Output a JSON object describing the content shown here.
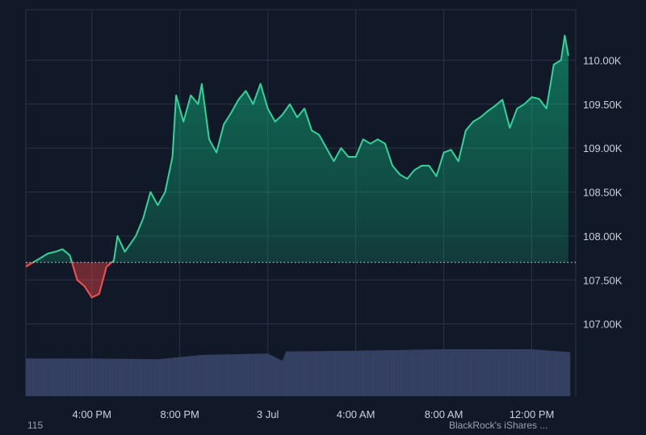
{
  "theme": {
    "background": "#111827",
    "grid": "#2a3344",
    "text": "#c9d1dc",
    "up_line": "#34d399",
    "down_line": "#f05252",
    "volume": "#3a4569"
  },
  "footer": {
    "left_text": "115",
    "right_text": "BlackRock's iShares ..."
  },
  "chart_data": {
    "type": "area",
    "title": "",
    "xlabel": "",
    "ylabel": "",
    "baseline": 107700,
    "ylim": [
      106500,
      110500
    ],
    "yticks": [
      107000,
      107500,
      108000,
      108500,
      109000,
      109500,
      110000
    ],
    "ytick_labels": [
      "107.00K",
      "107.50K",
      "108.00K",
      "108.50K",
      "109.00K",
      "109.50K",
      "110.00K"
    ],
    "x_range": [
      "2025-07-02 13:00",
      "2025-07-03 14:00"
    ],
    "xticks": [
      "2025-07-02 16:00",
      "2025-07-02 20:00",
      "2025-07-03 00:00",
      "2025-07-03 04:00",
      "2025-07-03 08:00",
      "2025-07-03 12:00"
    ],
    "xtick_labels": [
      "4:00 PM",
      "8:00 PM",
      "3 Jul",
      "4:00 AM",
      "8:00 AM",
      "12:00 PM"
    ],
    "grid": true,
    "series": [
      {
        "values": [
          [
            "2025-07-02 13:00",
            107650
          ],
          [
            "2025-07-02 13:20",
            107700
          ],
          [
            "2025-07-02 13:40",
            107750
          ],
          [
            "2025-07-02 14:00",
            107800
          ],
          [
            "2025-07-02 14:20",
            107820
          ],
          [
            "2025-07-02 14:40",
            107850
          ],
          [
            "2025-07-02 15:00",
            107780
          ],
          [
            "2025-07-02 15:20",
            107500
          ],
          [
            "2025-07-02 15:40",
            107430
          ],
          [
            "2025-07-02 16:00",
            107300
          ],
          [
            "2025-07-02 16:20",
            107340
          ],
          [
            "2025-07-02 16:40",
            107650
          ],
          [
            "2025-07-02 17:00",
            107720
          ],
          [
            "2025-07-02 17:10",
            108000
          ],
          [
            "2025-07-02 17:30",
            107820
          ],
          [
            "2025-07-02 18:00",
            108000
          ],
          [
            "2025-07-02 18:20",
            108200
          ],
          [
            "2025-07-02 18:40",
            108500
          ],
          [
            "2025-07-02 19:00",
            108350
          ],
          [
            "2025-07-02 19:20",
            108500
          ],
          [
            "2025-07-02 19:40",
            108900
          ],
          [
            "2025-07-02 19:50",
            109600
          ],
          [
            "2025-07-02 20:10",
            109300
          ],
          [
            "2025-07-02 20:30",
            109600
          ],
          [
            "2025-07-02 20:50",
            109500
          ],
          [
            "2025-07-02 21:00",
            109730
          ],
          [
            "2025-07-02 21:20",
            109100
          ],
          [
            "2025-07-02 21:40",
            108950
          ],
          [
            "2025-07-02 22:00",
            109270
          ],
          [
            "2025-07-02 22:20",
            109400
          ],
          [
            "2025-07-02 22:40",
            109550
          ],
          [
            "2025-07-02 23:00",
            109650
          ],
          [
            "2025-07-02 23:20",
            109500
          ],
          [
            "2025-07-02 23:40",
            109730
          ],
          [
            "2025-07-03 00:00",
            109450
          ],
          [
            "2025-07-03 00:20",
            109300
          ],
          [
            "2025-07-03 00:40",
            109380
          ],
          [
            "2025-07-03 01:00",
            109500
          ],
          [
            "2025-07-03 01:20",
            109350
          ],
          [
            "2025-07-03 01:40",
            109450
          ],
          [
            "2025-07-03 02:00",
            109200
          ],
          [
            "2025-07-03 02:20",
            109150
          ],
          [
            "2025-07-03 02:40",
            109000
          ],
          [
            "2025-07-03 03:00",
            108850
          ],
          [
            "2025-07-03 03:20",
            109000
          ],
          [
            "2025-07-03 03:40",
            108900
          ],
          [
            "2025-07-03 04:00",
            108900
          ],
          [
            "2025-07-03 04:20",
            109100
          ],
          [
            "2025-07-03 04:40",
            109050
          ],
          [
            "2025-07-03 05:00",
            109100
          ],
          [
            "2025-07-03 05:20",
            109050
          ],
          [
            "2025-07-03 05:40",
            108800
          ],
          [
            "2025-07-03 06:00",
            108700
          ],
          [
            "2025-07-03 06:20",
            108650
          ],
          [
            "2025-07-03 06:40",
            108750
          ],
          [
            "2025-07-03 07:00",
            108800
          ],
          [
            "2025-07-03 07:20",
            108800
          ],
          [
            "2025-07-03 07:40",
            108680
          ],
          [
            "2025-07-03 08:00",
            108950
          ],
          [
            "2025-07-03 08:20",
            108980
          ],
          [
            "2025-07-03 08:40",
            108850
          ],
          [
            "2025-07-03 09:00",
            109200
          ],
          [
            "2025-07-03 09:20",
            109300
          ],
          [
            "2025-07-03 09:40",
            109350
          ],
          [
            "2025-07-03 10:00",
            109420
          ],
          [
            "2025-07-03 10:20",
            109480
          ],
          [
            "2025-07-03 10:40",
            109550
          ],
          [
            "2025-07-03 11:00",
            109230
          ],
          [
            "2025-07-03 11:20",
            109450
          ],
          [
            "2025-07-03 11:40",
            109500
          ],
          [
            "2025-07-03 12:00",
            109580
          ],
          [
            "2025-07-03 12:20",
            109560
          ],
          [
            "2025-07-03 12:40",
            109450
          ],
          [
            "2025-07-03 13:00",
            109950
          ],
          [
            "2025-07-03 13:20",
            110000
          ],
          [
            "2025-07-03 13:30",
            110280
          ],
          [
            "2025-07-03 13:40",
            110050
          ]
        ]
      }
    ],
    "volume": {
      "values": [
        [
          "2025-07-02 13:00",
          0.53
        ],
        [
          "2025-07-02 16:00",
          0.53
        ],
        [
          "2025-07-02 19:00",
          0.52
        ],
        [
          "2025-07-02 21:00",
          0.58
        ],
        [
          "2025-07-03 00:00",
          0.6
        ],
        [
          "2025-07-03 00:40",
          0.5
        ],
        [
          "2025-07-03 00:50",
          0.63
        ],
        [
          "2025-07-03 04:00",
          0.64
        ],
        [
          "2025-07-03 08:00",
          0.66
        ],
        [
          "2025-07-03 12:00",
          0.66
        ],
        [
          "2025-07-03 13:45",
          0.62
        ]
      ]
    }
  }
}
